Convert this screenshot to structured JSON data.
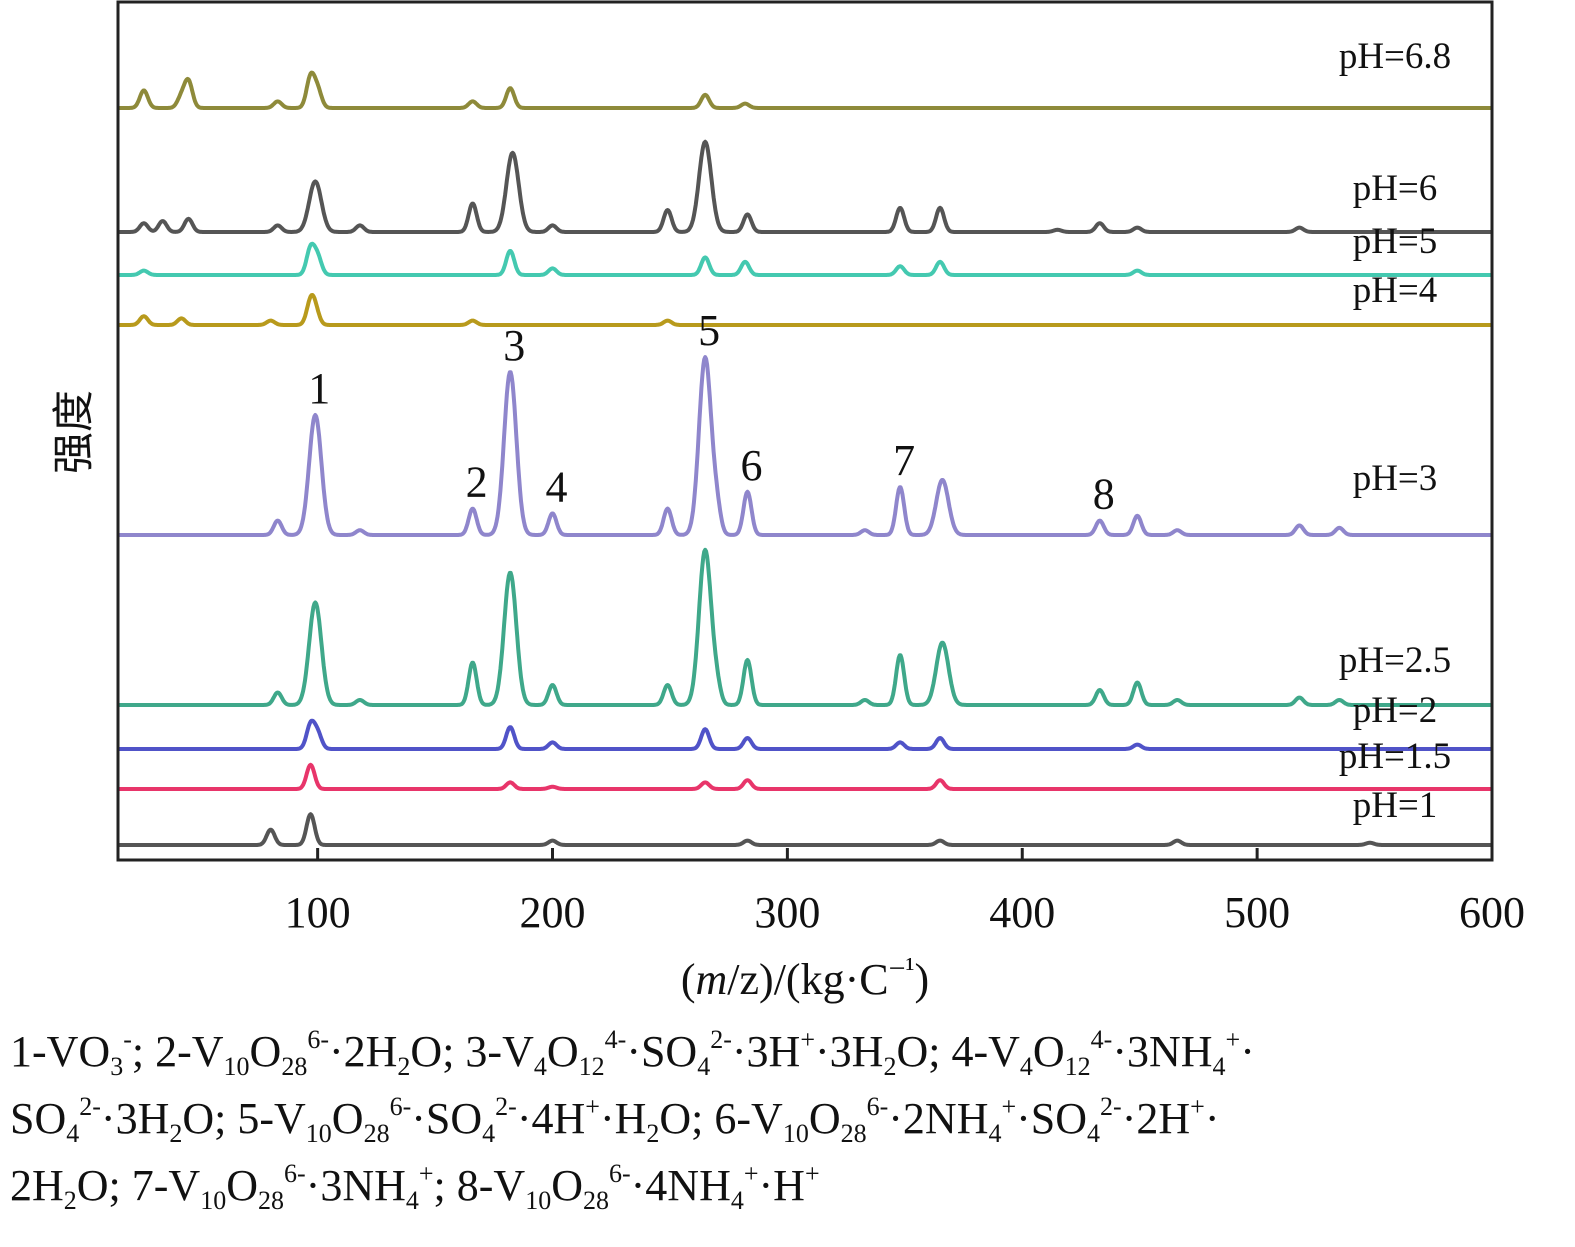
{
  "chart_data": {
    "type": "line",
    "xlabel": "(m/z)/(kg·C⁻¹)",
    "ylabel": "强度",
    "xlim": [
      15,
      600
    ],
    "x_ticks": [
      100,
      200,
      300,
      400,
      500,
      600
    ],
    "grid": false,
    "series": [
      {
        "name": "pH=6.8",
        "color": "#8e8a3a",
        "peaks": [
          [
            26,
            0.8
          ],
          [
            42,
            0.5
          ],
          [
            45,
            1.2
          ],
          [
            83,
            0.3
          ],
          [
            97,
            1.4
          ],
          [
            100,
            0.8
          ],
          [
            166,
            0.3
          ],
          [
            182,
            0.9
          ],
          [
            265,
            0.6
          ],
          [
            282,
            0.2
          ]
        ]
      },
      {
        "name": "pH=6",
        "color": "#555555",
        "peaks": [
          [
            26,
            0.4
          ],
          [
            34,
            0.5
          ],
          [
            45,
            0.6
          ],
          [
            83,
            0.3
          ],
          [
            99,
            2.3
          ],
          [
            118,
            0.3
          ],
          [
            166,
            1.3
          ],
          [
            183,
            3.6
          ],
          [
            200,
            0.3
          ],
          [
            249,
            1.0
          ],
          [
            265,
            4.1
          ],
          [
            283,
            0.8
          ],
          [
            348,
            1.1
          ],
          [
            365,
            1.1
          ],
          [
            415,
            0.1
          ],
          [
            433,
            0.4
          ],
          [
            449,
            0.2
          ],
          [
            518,
            0.2
          ]
        ]
      },
      {
        "name": "pH=5",
        "color": "#44c9b0",
        "peaks": [
          [
            26,
            0.2
          ],
          [
            97,
            1.2
          ],
          [
            100,
            0.8
          ],
          [
            182,
            1.1
          ],
          [
            200,
            0.3
          ],
          [
            265,
            0.8
          ],
          [
            282,
            0.6
          ],
          [
            348,
            0.4
          ],
          [
            365,
            0.6
          ],
          [
            449,
            0.2
          ]
        ]
      },
      {
        "name": "pH=4",
        "color": "#b89a1c",
        "peaks": [
          [
            26,
            0.4
          ],
          [
            42,
            0.3
          ],
          [
            80,
            0.2
          ],
          [
            97,
            1.0
          ],
          [
            99,
            0.6
          ],
          [
            166,
            0.2
          ],
          [
            249,
            0.2
          ]
        ]
      },
      {
        "name": "pH=3",
        "color": "#8f86cc",
        "peaks": [
          [
            83,
            0.6
          ],
          [
            99,
            5.0
          ],
          [
            118,
            0.2
          ],
          [
            166,
            1.1
          ],
          [
            182,
            6.8
          ],
          [
            200,
            0.9
          ],
          [
            249,
            1.1
          ],
          [
            265,
            7.4
          ],
          [
            270,
            0.9
          ],
          [
            283,
            1.8
          ],
          [
            333,
            0.2
          ],
          [
            348,
            2.0
          ],
          [
            366,
            2.3
          ],
          [
            433,
            0.6
          ],
          [
            449,
            0.8
          ],
          [
            466,
            0.2
          ],
          [
            518,
            0.4
          ],
          [
            535,
            0.3
          ]
        ]
      },
      {
        "name": "pH=2.5",
        "color": "#3fa88a",
        "peaks": [
          [
            83,
            0.5
          ],
          [
            99,
            4.1
          ],
          [
            118,
            0.2
          ],
          [
            166,
            1.7
          ],
          [
            182,
            5.3
          ],
          [
            200,
            0.8
          ],
          [
            249,
            0.8
          ],
          [
            265,
            6.2
          ],
          [
            270,
            0.6
          ],
          [
            283,
            1.8
          ],
          [
            333,
            0.2
          ],
          [
            348,
            2.0
          ],
          [
            366,
            2.5
          ],
          [
            433,
            0.6
          ],
          [
            449,
            0.9
          ],
          [
            466,
            0.2
          ],
          [
            518,
            0.3
          ],
          [
            535,
            0.2
          ]
        ]
      },
      {
        "name": "pH=2",
        "color": "#5053c8",
        "peaks": [
          [
            97,
            1.1
          ],
          [
            100,
            0.7
          ],
          [
            182,
            1.0
          ],
          [
            200,
            0.3
          ],
          [
            265,
            0.9
          ],
          [
            283,
            0.5
          ],
          [
            348,
            0.3
          ],
          [
            365,
            0.5
          ],
          [
            449,
            0.2
          ]
        ]
      },
      {
        "name": "pH=1.5",
        "color": "#e8356a",
        "peaks": [
          [
            97,
            1.1
          ],
          [
            182,
            0.3
          ],
          [
            200,
            0.1
          ],
          [
            265,
            0.3
          ],
          [
            283,
            0.4
          ],
          [
            365,
            0.4
          ]
        ]
      },
      {
        "name": "pH=1",
        "color": "#555555",
        "peaks": [
          [
            80,
            0.7
          ],
          [
            97,
            1.4
          ],
          [
            200,
            0.2
          ],
          [
            283,
            0.2
          ],
          [
            365,
            0.2
          ],
          [
            466,
            0.2
          ],
          [
            548,
            0.1
          ]
        ]
      }
    ],
    "peak_labels": [
      {
        "text": "1",
        "x": 99,
        "series": "pH=3"
      },
      {
        "text": "2",
        "x": 166,
        "series": "pH=3"
      },
      {
        "text": "3",
        "x": 182,
        "series": "pH=3"
      },
      {
        "text": "4",
        "x": 200,
        "series": "pH=3"
      },
      {
        "text": "5",
        "x": 265,
        "series": "pH=3"
      },
      {
        "text": "6",
        "x": 283,
        "series": "pH=3"
      },
      {
        "text": "7",
        "x": 348,
        "series": "pH=3"
      },
      {
        "text": "8",
        "x": 433,
        "series": "pH=3"
      }
    ]
  },
  "legend_lines": [
    "1-VO<sub>3</sub><sup>-</sup>; 2-V<sub>10</sub>O<sub>28</sub><sup>6-</sup>·2H<sub>2</sub>O; 3-V<sub>4</sub>O<sub>12</sub><sup>4-</sup>·SO<sub>4</sub><sup>2-</sup>·3H<sup>+</sup>·3H<sub>2</sub>O; 4-V<sub>4</sub>O<sub>12</sub><sup>4-</sup>·3NH<sub>4</sub><sup>+</sup>·",
    "SO<sub>4</sub><sup>2-</sup>·3H<sub>2</sub>O; 5-V<sub>10</sub>O<sub>28</sub><sup>6-</sup>·SO<sub>4</sub><sup>2-</sup>·4H<sup>+</sup>·H<sub>2</sub>O; 6-V<sub>10</sub>O<sub>28</sub><sup>6-</sup>·2NH<sub>4</sub><sup>+</sup>·SO<sub>4</sub><sup>2-</sup>·2H<sup>+</sup>·",
    "2H<sub>2</sub>O; 7-V<sub>10</sub>O<sub>28</sub><sup>6-</sup>·3NH<sub>4</sub><sup>+</sup>; 8-V<sub>10</sub>O<sub>28</sub><sup>6-</sup>·4NH<sub>4</sub><sup>+</sup>·H<sup>+</sup>"
  ]
}
